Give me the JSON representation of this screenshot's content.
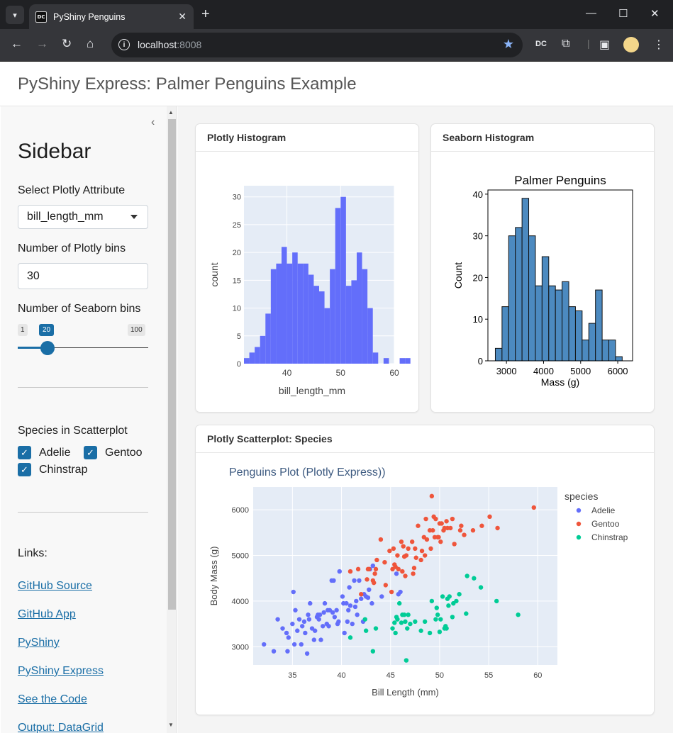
{
  "browser": {
    "tab_title": "PyShiny Penguins",
    "favicon_text": "DC",
    "url_host": "localhost",
    "url_port": ":8008",
    "ext_dc_text": "DC"
  },
  "page": {
    "title": "PyShiny Express: Palmer Penguins Example"
  },
  "sidebar": {
    "heading": "Sidebar",
    "select_label": "Select Plotly Attribute",
    "select_value": "bill_length_mm",
    "plotly_bins_label": "Number of Plotly bins",
    "plotly_bins_value": "30",
    "seaborn_bins_label": "Number of Seaborn bins",
    "slider_min": "1",
    "slider_value": "20",
    "slider_max": "100",
    "slider_fraction": 0.192,
    "species_label": "Species in Scatterplot",
    "species": [
      {
        "label": "Adelie",
        "checked": true
      },
      {
        "label": "Gentoo",
        "checked": true
      },
      {
        "label": "Chinstrap",
        "checked": true
      }
    ],
    "links_label": "Links:",
    "links": [
      "GitHub Source",
      "GitHub App",
      "PyShiny",
      "PyShiny Express",
      "See the Code",
      "Output: DataGrid"
    ]
  },
  "cards": {
    "plotly_hist": "Plotly Histogram",
    "seaborn_hist": "Seaborn Histogram",
    "scatter": "Plotly Scatterplot: Species"
  },
  "chart_data": [
    {
      "type": "bar",
      "title": "",
      "xlabel": "bill_length_mm",
      "ylabel": "count",
      "bin_start": 32,
      "bin_width": 1,
      "values": [
        1,
        2,
        3,
        5,
        9,
        17,
        18,
        21,
        18,
        20,
        18,
        18,
        16,
        14,
        13,
        10,
        17,
        28,
        30,
        14,
        15,
        20,
        17,
        10,
        2,
        0,
        1,
        0,
        0,
        1,
        1
      ],
      "xlim": [
        32,
        60
      ],
      "ylim": [
        0,
        32
      ],
      "xticks": [
        "40",
        "50",
        "60"
      ],
      "yticks": [
        "0",
        "5",
        "10",
        "15",
        "20",
        "25",
        "30"
      ],
      "colors": {
        "bar": "#636efa",
        "plot_bg": "#e5ecf6"
      }
    },
    {
      "type": "bar",
      "title": "Palmer Penguins",
      "xlabel": "Mass (g)",
      "ylabel": "Count",
      "bin_start": 2700,
      "bin_width": 180,
      "values": [
        3,
        13,
        30,
        32,
        39,
        30,
        18,
        25,
        18,
        17,
        19,
        13,
        12,
        5,
        9,
        17,
        5,
        5,
        1
      ],
      "xlim": [
        2500,
        6400
      ],
      "ylim": [
        0,
        41
      ],
      "xticks": [
        "3000",
        "4000",
        "5000",
        "6000"
      ],
      "yticks": [
        "0",
        "10",
        "20",
        "30",
        "40"
      ],
      "colors": {
        "bar": "#4c8ac0",
        "edge": "#111111"
      }
    },
    {
      "type": "scatter",
      "title": "Penguins Plot (Plotly Express))",
      "xlabel": "Bill Length (mm)",
      "ylabel": "Body Mass (g)",
      "xlim": [
        31,
        62
      ],
      "ylim": [
        2600,
        6500
      ],
      "xticks": [
        "35",
        "40",
        "45",
        "50",
        "55",
        "60"
      ],
      "yticks": [
        "3000",
        "4000",
        "5000",
        "6000"
      ],
      "legend_title": "species",
      "legend_position": "top-right",
      "series": [
        {
          "name": "Adelie",
          "color": "#636efa",
          "points": [
            [
              32.1,
              3050
            ],
            [
              33.1,
              2900
            ],
            [
              33.5,
              3600
            ],
            [
              34.0,
              3400
            ],
            [
              34.4,
              3300
            ],
            [
              34.5,
              2900
            ],
            [
              34.6,
              3200
            ],
            [
              35.0,
              3500
            ],
            [
              35.1,
              4200
            ],
            [
              35.2,
              3050
            ],
            [
              35.3,
              3800
            ],
            [
              35.5,
              3350
            ],
            [
              35.7,
              3600
            ],
            [
              35.9,
              3050
            ],
            [
              36.0,
              3450
            ],
            [
              36.2,
              3550
            ],
            [
              36.3,
              3300
            ],
            [
              36.5,
              2850
            ],
            [
              36.6,
              3700
            ],
            [
              36.7,
              3600
            ],
            [
              36.8,
              3950
            ],
            [
              37.0,
              3400
            ],
            [
              37.2,
              3150
            ],
            [
              37.3,
              3350
            ],
            [
              37.5,
              3650
            ],
            [
              37.6,
              3700
            ],
            [
              37.7,
              3600
            ],
            [
              37.8,
              3700
            ],
            [
              37.9,
              3150
            ],
            [
              38.1,
              3450
            ],
            [
              38.2,
              3750
            ],
            [
              38.3,
              3950
            ],
            [
              38.5,
              3500
            ],
            [
              38.6,
              3800
            ],
            [
              38.7,
              3450
            ],
            [
              38.8,
              3800
            ],
            [
              39.0,
              4450
            ],
            [
              39.1,
              3750
            ],
            [
              39.2,
              4450
            ],
            [
              39.3,
              3650
            ],
            [
              39.5,
              3800
            ],
            [
              39.6,
              3500
            ],
            [
              39.7,
              3550
            ],
            [
              39.8,
              4650
            ],
            [
              40.1,
              4100
            ],
            [
              40.2,
              3950
            ],
            [
              40.3,
              3300
            ],
            [
              40.5,
              3950
            ],
            [
              40.6,
              3550
            ],
            [
              40.7,
              3800
            ],
            [
              40.8,
              4300
            ],
            [
              40.9,
              3900
            ],
            [
              41.1,
              3500
            ],
            [
              41.3,
              4450
            ],
            [
              41.4,
              3875
            ],
            [
              41.5,
              4000
            ],
            [
              41.6,
              3700
            ],
            [
              41.8,
              4450
            ],
            [
              42.0,
              4050
            ],
            [
              42.2,
              3550
            ],
            [
              42.3,
              4150
            ],
            [
              42.5,
              4100
            ],
            [
              42.7,
              4075
            ],
            [
              42.8,
              4250
            ],
            [
              42.9,
              4700
            ],
            [
              43.1,
              3950
            ],
            [
              43.2,
              4775
            ],
            [
              44.1,
              4100
            ],
            [
              45.6,
              4600
            ],
            [
              45.8,
              4150
            ],
            [
              46.0,
              4200
            ]
          ]
        },
        {
          "name": "Gentoo",
          "color": "#ef553b",
          "points": [
            [
              40.9,
              4650
            ],
            [
              41.7,
              4700
            ],
            [
              42.0,
              4150
            ],
            [
              42.6,
              4475
            ],
            [
              42.7,
              4700
            ],
            [
              42.8,
              4700
            ],
            [
              43.2,
              4450
            ],
            [
              43.3,
              4400
            ],
            [
              43.4,
              4600
            ],
            [
              43.5,
              4700
            ],
            [
              43.6,
              4900
            ],
            [
              44.0,
              5350
            ],
            [
              44.4,
              4850
            ],
            [
              44.5,
              4350
            ],
            [
              44.9,
              5100
            ],
            [
              45.1,
              4200
            ],
            [
              45.2,
              4700
            ],
            [
              45.3,
              5150
            ],
            [
              45.4,
              4800
            ],
            [
              45.5,
              4750
            ],
            [
              45.7,
              5000
            ],
            [
              45.8,
              4700
            ],
            [
              46.1,
              5300
            ],
            [
              46.2,
              4650
            ],
            [
              46.3,
              5200
            ],
            [
              46.4,
              4975
            ],
            [
              46.5,
              4550
            ],
            [
              46.6,
              5000
            ],
            [
              46.8,
              5150
            ],
            [
              47.2,
              5300
            ],
            [
              47.3,
              4600
            ],
            [
              47.4,
              4725
            ],
            [
              47.5,
              5150
            ],
            [
              47.6,
              4950
            ],
            [
              47.8,
              5650
            ],
            [
              48.1,
              4900
            ],
            [
              48.2,
              5100
            ],
            [
              48.4,
              5400
            ],
            [
              48.5,
              5000
            ],
            [
              48.6,
              5800
            ],
            [
              48.7,
              5350
            ],
            [
              49.0,
              5550
            ],
            [
              49.1,
              5150
            ],
            [
              49.2,
              6300
            ],
            [
              49.3,
              5550
            ],
            [
              49.4,
              5850
            ],
            [
              49.5,
              5400
            ],
            [
              49.6,
              5800
            ],
            [
              49.8,
              5400
            ],
            [
              49.9,
              5400
            ],
            [
              50.0,
              5700
            ],
            [
              50.1,
              5300
            ],
            [
              50.2,
              5700
            ],
            [
              50.4,
              5550
            ],
            [
              50.5,
              5600
            ],
            [
              50.7,
              5750
            ],
            [
              50.8,
              5600
            ],
            [
              51.1,
              5600
            ],
            [
              51.3,
              5800
            ],
            [
              51.5,
              5250
            ],
            [
              52.1,
              5550
            ],
            [
              52.2,
              5650
            ],
            [
              52.5,
              5450
            ],
            [
              53.4,
              5550
            ],
            [
              54.3,
              5650
            ],
            [
              55.1,
              5850
            ],
            [
              55.9,
              5600
            ],
            [
              59.6,
              6050
            ]
          ]
        },
        {
          "name": "Chinstrap",
          "color": "#00cc96",
          "points": [
            [
              40.9,
              3200
            ],
            [
              42.4,
              3600
            ],
            [
              42.5,
              3350
            ],
            [
              43.2,
              2900
            ],
            [
              43.5,
              3400
            ],
            [
              45.2,
              3400
            ],
            [
              45.4,
              3525
            ],
            [
              45.5,
              3300
            ],
            [
              45.6,
              3650
            ],
            [
              45.7,
              3600
            ],
            [
              45.9,
              3950
            ],
            [
              46.1,
              3525
            ],
            [
              46.2,
              3700
            ],
            [
              46.4,
              3700
            ],
            [
              46.5,
              3550
            ],
            [
              46.6,
              2700
            ],
            [
              46.7,
              3400
            ],
            [
              46.8,
              3700
            ],
            [
              47.0,
              3500
            ],
            [
              47.5,
              3550
            ],
            [
              48.1,
              3350
            ],
            [
              48.5,
              3550
            ],
            [
              49.0,
              3300
            ],
            [
              49.2,
              4000
            ],
            [
              49.6,
              3600
            ],
            [
              49.7,
              3850
            ],
            [
              49.8,
              3700
            ],
            [
              50.0,
              3325
            ],
            [
              50.1,
              3600
            ],
            [
              50.3,
              4100
            ],
            [
              50.5,
              3400
            ],
            [
              50.6,
              3450
            ],
            [
              50.7,
              3400
            ],
            [
              50.8,
              4050
            ],
            [
              50.9,
              3900
            ],
            [
              51.0,
              4100
            ],
            [
              51.3,
              3650
            ],
            [
              51.4,
              3950
            ],
            [
              51.7,
              4000
            ],
            [
              52.0,
              4150
            ],
            [
              52.7,
              3725
            ],
            [
              52.8,
              4550
            ],
            [
              53.5,
              4500
            ],
            [
              54.2,
              4300
            ],
            [
              55.8,
              4000
            ],
            [
              58.0,
              3700
            ]
          ]
        }
      ]
    }
  ]
}
